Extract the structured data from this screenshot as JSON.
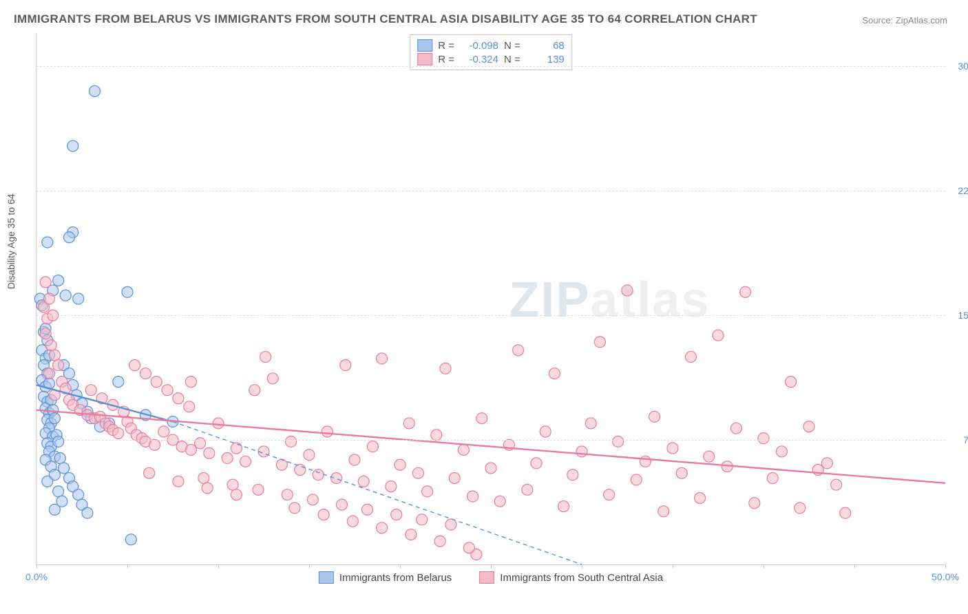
{
  "title": "IMMIGRANTS FROM BELARUS VS IMMIGRANTS FROM SOUTH CENTRAL ASIA DISABILITY AGE 35 TO 64 CORRELATION CHART",
  "source_label": "Source:",
  "source_name": "ZipAtlas.com",
  "ylabel": "Disability Age 35 to 64",
  "watermark_a": "ZIP",
  "watermark_b": "atlas",
  "chart": {
    "type": "scatter",
    "background_color": "#ffffff",
    "grid_color": "#dddddd",
    "axis_color": "#cccccc",
    "tick_label_color": "#5b8fd6",
    "xlim": [
      0,
      50
    ],
    "ylim": [
      0,
      32
    ],
    "x_ticks": [
      0,
      5,
      10,
      15,
      20,
      25,
      30,
      35,
      40,
      45,
      50
    ],
    "x_tick_labels": {
      "0": "0.0%",
      "50": "50.0%"
    },
    "y_ticks": [
      7.5,
      15.0,
      22.5,
      30.0
    ],
    "y_tick_labels": [
      "7.5%",
      "15.0%",
      "22.5%",
      "30.0%"
    ],
    "marker_radius": 8,
    "marker_stroke_width": 1.2,
    "series": [
      {
        "name": "Immigrants from Belarus",
        "fill": "#a9c7ec",
        "fill_opacity": 0.55,
        "stroke": "#5b8fd6",
        "trend": {
          "solid": {
            "x1": 0,
            "y1": 10.8,
            "x2": 7.5,
            "y2": 8.6
          },
          "dash": {
            "x1": 7.5,
            "y1": 8.6,
            "x2": 30,
            "y2": 0
          },
          "color": "#5b8fd6",
          "width": 2.4,
          "dash_pattern": "6 5"
        },
        "stats": {
          "R": "-0.098",
          "N": "68"
        },
        "points": [
          [
            0.2,
            16.0
          ],
          [
            0.3,
            15.6
          ],
          [
            0.4,
            14.0
          ],
          [
            0.5,
            14.2
          ],
          [
            0.6,
            13.5
          ],
          [
            0.3,
            12.9
          ],
          [
            0.5,
            12.4
          ],
          [
            0.7,
            12.6
          ],
          [
            0.4,
            12.0
          ],
          [
            0.6,
            11.5
          ],
          [
            0.3,
            11.1
          ],
          [
            0.5,
            10.7
          ],
          [
            0.7,
            10.9
          ],
          [
            0.4,
            10.1
          ],
          [
            0.6,
            9.8
          ],
          [
            0.8,
            9.9
          ],
          [
            0.5,
            9.4
          ],
          [
            0.7,
            9.1
          ],
          [
            0.9,
            9.3
          ],
          [
            0.6,
            8.7
          ],
          [
            0.8,
            8.5
          ],
          [
            1.0,
            8.8
          ],
          [
            0.7,
            8.2
          ],
          [
            0.5,
            7.9
          ],
          [
            0.9,
            7.7
          ],
          [
            1.1,
            7.8
          ],
          [
            0.6,
            7.3
          ],
          [
            0.8,
            7.1
          ],
          [
            1.2,
            7.4
          ],
          [
            0.7,
            6.8
          ],
          [
            1.0,
            6.5
          ],
          [
            0.5,
            6.3
          ],
          [
            1.3,
            6.4
          ],
          [
            0.8,
            5.9
          ],
          [
            1.5,
            5.8
          ],
          [
            1.0,
            5.4
          ],
          [
            1.8,
            5.2
          ],
          [
            0.6,
            5.0
          ],
          [
            2.0,
            4.7
          ],
          [
            1.2,
            4.4
          ],
          [
            2.3,
            4.2
          ],
          [
            1.4,
            3.8
          ],
          [
            2.5,
            3.6
          ],
          [
            1.0,
            3.3
          ],
          [
            2.8,
            3.1
          ],
          [
            1.5,
            12.0
          ],
          [
            1.8,
            11.5
          ],
          [
            2.0,
            10.8
          ],
          [
            2.2,
            10.2
          ],
          [
            2.5,
            9.7
          ],
          [
            2.8,
            9.2
          ],
          [
            3.0,
            8.8
          ],
          [
            3.5,
            8.3
          ],
          [
            4.0,
            8.5
          ],
          [
            4.5,
            11.0
          ],
          [
            5.0,
            16.4
          ],
          [
            1.2,
            17.1
          ],
          [
            0.9,
            16.5
          ],
          [
            3.2,
            28.5
          ],
          [
            2.0,
            25.2
          ],
          [
            2.0,
            20.0
          ],
          [
            1.8,
            19.7
          ],
          [
            0.6,
            19.4
          ],
          [
            7.5,
            8.6
          ],
          [
            6.0,
            9.0
          ],
          [
            5.2,
            1.5
          ],
          [
            1.6,
            16.2
          ],
          [
            2.3,
            16.0
          ]
        ]
      },
      {
        "name": "Immigrants from South Central Asia",
        "fill": "#f4b9c6",
        "fill_opacity": 0.55,
        "stroke": "#e87b9a",
        "trend": {
          "solid": {
            "x1": 0,
            "y1": 9.3,
            "x2": 50,
            "y2": 4.9
          },
          "color": "#e87b9a",
          "width": 2.4
        },
        "stats": {
          "R": "-0.324",
          "N": "139"
        },
        "points": [
          [
            0.4,
            15.5
          ],
          [
            0.6,
            14.8
          ],
          [
            0.5,
            13.9
          ],
          [
            0.8,
            13.2
          ],
          [
            1.0,
            12.6
          ],
          [
            1.2,
            12.0
          ],
          [
            0.7,
            11.5
          ],
          [
            1.4,
            11.0
          ],
          [
            1.6,
            10.6
          ],
          [
            1.0,
            10.2
          ],
          [
            1.8,
            9.9
          ],
          [
            2.0,
            9.6
          ],
          [
            2.4,
            9.3
          ],
          [
            2.8,
            9.0
          ],
          [
            3.2,
            8.8
          ],
          [
            3.5,
            8.9
          ],
          [
            3.8,
            8.5
          ],
          [
            4.0,
            8.3
          ],
          [
            4.2,
            8.1
          ],
          [
            4.5,
            7.9
          ],
          [
            5.0,
            8.6
          ],
          [
            5.2,
            8.2
          ],
          [
            5.5,
            7.8
          ],
          [
            5.8,
            7.6
          ],
          [
            6.0,
            7.4
          ],
          [
            6.5,
            7.2
          ],
          [
            7.0,
            8.0
          ],
          [
            7.5,
            7.5
          ],
          [
            8.0,
            7.1
          ],
          [
            8.5,
            6.9
          ],
          [
            9.0,
            7.3
          ],
          [
            9.5,
            6.7
          ],
          [
            10.0,
            8.5
          ],
          [
            10.5,
            6.4
          ],
          [
            11.0,
            7.0
          ],
          [
            11.5,
            6.2
          ],
          [
            12.0,
            10.5
          ],
          [
            12.5,
            6.8
          ],
          [
            13.0,
            11.2
          ],
          [
            13.5,
            6.0
          ],
          [
            14.0,
            7.4
          ],
          [
            14.5,
            5.7
          ],
          [
            15.0,
            6.6
          ],
          [
            15.5,
            5.4
          ],
          [
            16.0,
            8.0
          ],
          [
            16.5,
            5.2
          ],
          [
            17.0,
            12.0
          ],
          [
            17.5,
            6.3
          ],
          [
            18.0,
            5.0
          ],
          [
            18.5,
            7.1
          ],
          [
            19.0,
            12.4
          ],
          [
            19.5,
            4.7
          ],
          [
            20.0,
            6.0
          ],
          [
            20.5,
            8.5
          ],
          [
            21.0,
            5.5
          ],
          [
            21.5,
            4.4
          ],
          [
            22.0,
            7.8
          ],
          [
            22.5,
            11.8
          ],
          [
            23.0,
            5.2
          ],
          [
            23.5,
            6.9
          ],
          [
            24.0,
            4.1
          ],
          [
            24.5,
            8.8
          ],
          [
            25.0,
            5.8
          ],
          [
            25.5,
            3.8
          ],
          [
            26.0,
            7.2
          ],
          [
            26.5,
            12.9
          ],
          [
            27.0,
            4.5
          ],
          [
            27.5,
            6.1
          ],
          [
            28.0,
            8.0
          ],
          [
            28.5,
            11.5
          ],
          [
            29.0,
            3.5
          ],
          [
            29.5,
            5.4
          ],
          [
            30.0,
            6.8
          ],
          [
            30.5,
            8.5
          ],
          [
            31.0,
            13.4
          ],
          [
            31.5,
            4.2
          ],
          [
            32.0,
            7.4
          ],
          [
            32.5,
            16.5
          ],
          [
            33.0,
            5.1
          ],
          [
            33.5,
            6.2
          ],
          [
            34.0,
            8.9
          ],
          [
            34.5,
            3.2
          ],
          [
            35.0,
            7.0
          ],
          [
            35.5,
            5.5
          ],
          [
            36.0,
            12.5
          ],
          [
            36.5,
            4.0
          ],
          [
            37.0,
            6.5
          ],
          [
            37.5,
            13.8
          ],
          [
            38.0,
            5.9
          ],
          [
            38.5,
            8.2
          ],
          [
            39.0,
            16.4
          ],
          [
            39.5,
            3.7
          ],
          [
            40.0,
            7.6
          ],
          [
            40.5,
            5.2
          ],
          [
            41.0,
            6.8
          ],
          [
            41.5,
            11.0
          ],
          [
            42.0,
            3.4
          ],
          [
            42.5,
            8.3
          ],
          [
            43.0,
            5.7
          ],
          [
            43.5,
            6.1
          ],
          [
            44.0,
            4.8
          ],
          [
            44.5,
            3.1
          ],
          [
            8.5,
            11.0
          ],
          [
            9.2,
            5.2
          ],
          [
            10.8,
            4.8
          ],
          [
            12.2,
            4.5
          ],
          [
            13.8,
            4.2
          ],
          [
            15.2,
            3.9
          ],
          [
            16.8,
            3.6
          ],
          [
            18.2,
            3.3
          ],
          [
            19.8,
            3.0
          ],
          [
            21.2,
            2.7
          ],
          [
            22.8,
            2.4
          ],
          [
            24.2,
            0.6
          ],
          [
            6.2,
            5.5
          ],
          [
            7.8,
            5.0
          ],
          [
            9.4,
            4.6
          ],
          [
            11.0,
            4.2
          ],
          [
            12.6,
            12.5
          ],
          [
            14.2,
            3.4
          ],
          [
            15.8,
            3.0
          ],
          [
            17.4,
            2.6
          ],
          [
            19.0,
            2.2
          ],
          [
            20.6,
            1.8
          ],
          [
            22.2,
            1.4
          ],
          [
            23.8,
            1.0
          ],
          [
            3.0,
            10.5
          ],
          [
            3.6,
            10.0
          ],
          [
            4.2,
            9.6
          ],
          [
            4.8,
            9.2
          ],
          [
            5.4,
            12.0
          ],
          [
            6.0,
            11.5
          ],
          [
            6.6,
            11.0
          ],
          [
            7.2,
            10.5
          ],
          [
            7.8,
            10.0
          ],
          [
            8.4,
            9.5
          ],
          [
            0.5,
            17.0
          ],
          [
            0.7,
            16.0
          ],
          [
            0.9,
            15.0
          ]
        ]
      }
    ]
  },
  "stats_labels": {
    "R": "R =",
    "N": "N ="
  },
  "bottom_legend": [
    {
      "swatch_fill": "#a9c7ec",
      "swatch_stroke": "#5b8fd6",
      "label": "Immigrants from Belarus"
    },
    {
      "swatch_fill": "#f4b9c6",
      "swatch_stroke": "#e87b9a",
      "label": "Immigrants from South Central Asia"
    }
  ]
}
